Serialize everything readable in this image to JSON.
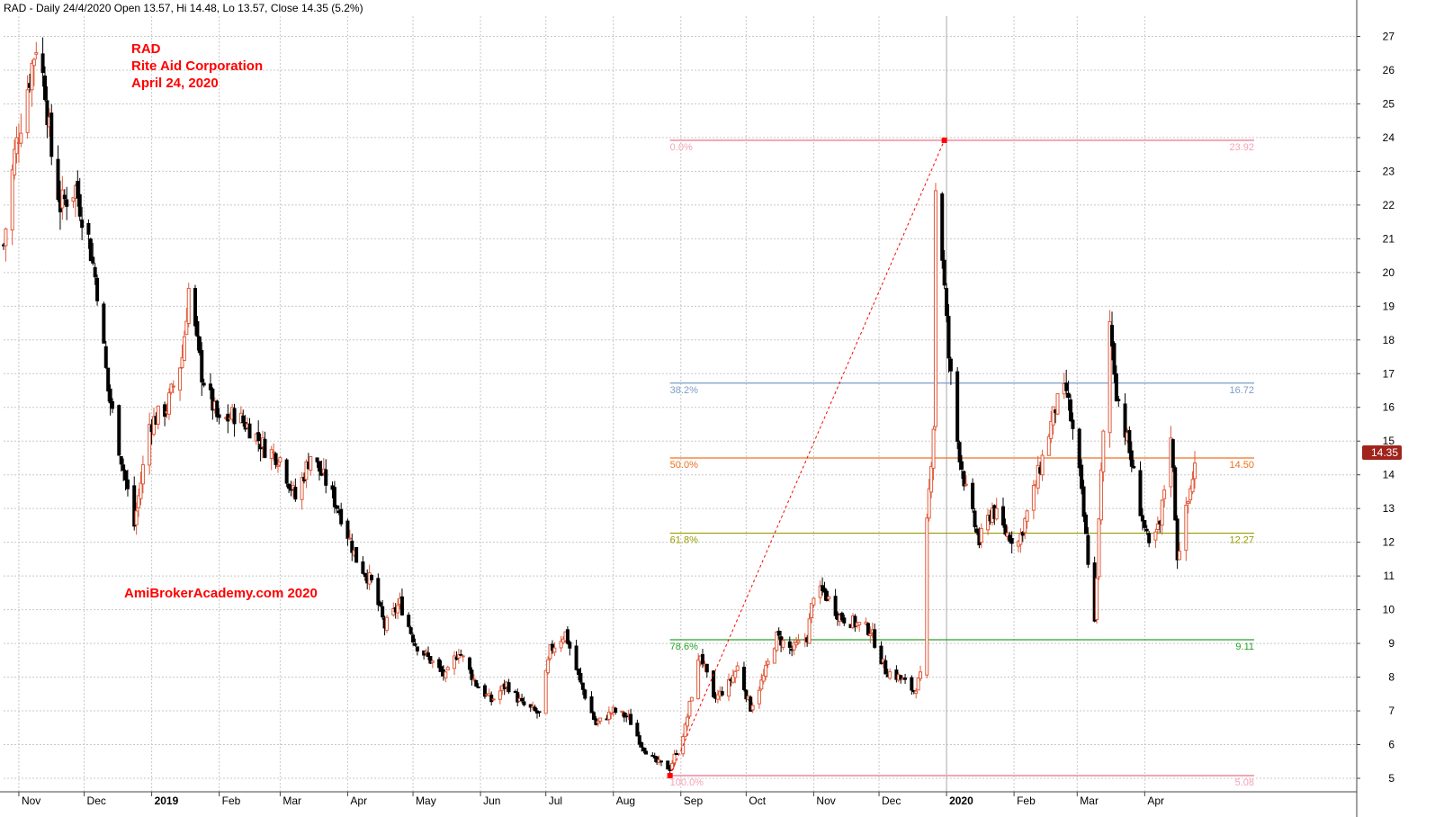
{
  "header": {
    "text": "RAD - Daily 24/4/2020 Open 13.57, Hi 14.48, Lo 13.57, Close 14.35 (5.2%)"
  },
  "annotations": {
    "ticker": "RAD",
    "company": "Rite Aid Corporation",
    "date": "April 24, 2020",
    "watermark": "AmiBrokerAcademy.com   2020"
  },
  "last_price": "14.35",
  "colors": {
    "up": "#e05a3a",
    "down": "#000000",
    "grid": "#c8c8c8",
    "fib_0": "#f5a3b5",
    "fib_382": "#7a9ec7",
    "fib_50": "#f07020",
    "fib_618": "#9a9a00",
    "fib_786": "#2aa02a",
    "fib_100": "#f5a3b5",
    "trendline": "#ff0000",
    "badge": "#a0241c"
  },
  "chart_data": {
    "type": "candlestick",
    "ylim": [
      4.6,
      27.6
    ],
    "yticks": [
      5,
      6,
      7,
      8,
      9,
      10,
      11,
      12,
      13,
      14,
      15,
      16,
      17,
      18,
      19,
      20,
      21,
      22,
      23,
      24,
      25,
      26,
      27
    ],
    "x_range": [
      "2018-10-25",
      "2020-04-24"
    ],
    "month_labels": [
      {
        "label": "Nov",
        "date": "2018-11-01"
      },
      {
        "label": "Dec",
        "date": "2018-12-01"
      },
      {
        "label": "2019",
        "date": "2019-01-01"
      },
      {
        "label": "Feb",
        "date": "2019-02-01"
      },
      {
        "label": "Mar",
        "date": "2019-03-01"
      },
      {
        "label": "Apr",
        "date": "2019-04-01"
      },
      {
        "label": "May",
        "date": "2019-05-01"
      },
      {
        "label": "Jun",
        "date": "2019-06-01"
      },
      {
        "label": "Jul",
        "date": "2019-07-01"
      },
      {
        "label": "Aug",
        "date": "2019-08-01"
      },
      {
        "label": "Sep",
        "date": "2019-09-01"
      },
      {
        "label": "Oct",
        "date": "2019-10-01"
      },
      {
        "label": "Nov",
        "date": "2019-11-01"
      },
      {
        "label": "Dec",
        "date": "2019-12-01"
      },
      {
        "label": "2020",
        "date": "2020-01-01"
      },
      {
        "label": "Feb",
        "date": "2020-02-01"
      },
      {
        "label": "Mar",
        "date": "2020-03-01"
      },
      {
        "label": "Apr",
        "date": "2020-04-01"
      }
    ],
    "close_path": [
      [
        "2018-10-25",
        20.8
      ],
      [
        "2018-10-30",
        23.5
      ],
      [
        "2018-11-05",
        25.5
      ],
      [
        "2018-11-09",
        26.8
      ],
      [
        "2018-11-13",
        25.5
      ],
      [
        "2018-11-16",
        23.5
      ],
      [
        "2018-11-20",
        22.0
      ],
      [
        "2018-11-27",
        22.5
      ],
      [
        "2018-12-03",
        21.0
      ],
      [
        "2018-12-07",
        19.5
      ],
      [
        "2018-12-12",
        16.5
      ],
      [
        "2018-12-18",
        14.5
      ],
      [
        "2018-12-24",
        12.5
      ],
      [
        "2018-12-31",
        15.5
      ],
      [
        "2019-01-08",
        16.0
      ],
      [
        "2019-01-15",
        17.5
      ],
      [
        "2019-01-18",
        19.5
      ],
      [
        "2019-01-24",
        17.0
      ],
      [
        "2019-02-01",
        15.5
      ],
      [
        "2019-02-08",
        15.8
      ],
      [
        "2019-02-15",
        15.4
      ],
      [
        "2019-02-22",
        14.8
      ],
      [
        "2019-03-01",
        14.5
      ],
      [
        "2019-03-08",
        13.3
      ],
      [
        "2019-03-15",
        14.6
      ],
      [
        "2019-03-22",
        13.8
      ],
      [
        "2019-03-29",
        12.8
      ],
      [
        "2019-04-05",
        11.5
      ],
      [
        "2019-04-12",
        10.8
      ],
      [
        "2019-04-18",
        9.5
      ],
      [
        "2019-04-25",
        10.2
      ],
      [
        "2019-05-02",
        9.0
      ],
      [
        "2019-05-09",
        8.5
      ],
      [
        "2019-05-16",
        8.0
      ],
      [
        "2019-05-22",
        8.8
      ],
      [
        "2019-05-30",
        7.8
      ],
      [
        "2019-06-06",
        7.3
      ],
      [
        "2019-06-13",
        7.8
      ],
      [
        "2019-06-20",
        7.2
      ],
      [
        "2019-06-28",
        6.9
      ],
      [
        "2019-07-03",
        8.8
      ],
      [
        "2019-07-10",
        9.3
      ],
      [
        "2019-07-17",
        7.8
      ],
      [
        "2019-07-24",
        6.6
      ],
      [
        "2019-08-01",
        7.0
      ],
      [
        "2019-08-08",
        6.8
      ],
      [
        "2019-08-14",
        6.0
      ],
      [
        "2019-08-20",
        5.5
      ],
      [
        "2019-08-27",
        5.3
      ],
      [
        "2019-09-03",
        6.5
      ],
      [
        "2019-09-06",
        7.5
      ],
      [
        "2019-09-10",
        8.7
      ],
      [
        "2019-09-16",
        7.3
      ],
      [
        "2019-09-23",
        7.8
      ],
      [
        "2019-09-27",
        8.3
      ],
      [
        "2019-10-03",
        7.1
      ],
      [
        "2019-10-09",
        8.0
      ],
      [
        "2019-10-15",
        9.2
      ],
      [
        "2019-10-22",
        8.8
      ],
      [
        "2019-10-29",
        9.2
      ],
      [
        "2019-11-01",
        10.5
      ],
      [
        "2019-11-06",
        10.5
      ],
      [
        "2019-11-13",
        9.8
      ],
      [
        "2019-11-20",
        9.6
      ],
      [
        "2019-11-27",
        9.4
      ],
      [
        "2019-12-04",
        8.2
      ],
      [
        "2019-12-10",
        8.0
      ],
      [
        "2019-12-17",
        7.6
      ],
      [
        "2019-12-20",
        8.0
      ],
      [
        "2019-12-23",
        12.5
      ],
      [
        "2019-12-26",
        15.5
      ],
      [
        "2019-12-27",
        22.5
      ],
      [
        "2019-12-30",
        20.5
      ],
      [
        "2020-01-02",
        17.5
      ],
      [
        "2020-01-06",
        15.0
      ],
      [
        "2020-01-10",
        13.5
      ],
      [
        "2020-01-16",
        12.0
      ],
      [
        "2020-01-22",
        13.0
      ],
      [
        "2020-01-28",
        12.3
      ],
      [
        "2020-02-03",
        12.0
      ],
      [
        "2020-02-10",
        13.5
      ],
      [
        "2020-02-14",
        14.5
      ],
      [
        "2020-02-20",
        16.0
      ],
      [
        "2020-02-25",
        16.5
      ],
      [
        "2020-03-02",
        14.0
      ],
      [
        "2020-03-06",
        11.5
      ],
      [
        "2020-03-09",
        9.6
      ],
      [
        "2020-03-12",
        14.0
      ],
      [
        "2020-03-16",
        18.5
      ],
      [
        "2020-03-19",
        16.5
      ],
      [
        "2020-03-24",
        15.0
      ],
      [
        "2020-03-30",
        13.0
      ],
      [
        "2020-04-03",
        11.8
      ],
      [
        "2020-04-08",
        12.5
      ],
      [
        "2020-04-13",
        15.3
      ],
      [
        "2020-04-16",
        11.6
      ],
      [
        "2020-04-21",
        13.2
      ],
      [
        "2020-04-24",
        14.35
      ]
    ],
    "fibonacci": {
      "levels": [
        {
          "pct": "0.0%",
          "value": "23.92",
          "price": 23.92
        },
        {
          "pct": "38.2%",
          "value": "16.72",
          "price": 16.72
        },
        {
          "pct": "50.0%",
          "value": "14.50",
          "price": 14.5
        },
        {
          "pct": "61.8%",
          "value": "12.27",
          "price": 12.27
        },
        {
          "pct": "78.6%",
          "value": "9.11",
          "price": 9.11
        },
        {
          "pct": "100.0%",
          "value": "5.08",
          "price": 5.08
        }
      ],
      "start_date": "2019-08-27",
      "end_date": "2019-12-31",
      "label_end_date": "2020-04-24"
    },
    "trendline": {
      "from": [
        "2019-08-27",
        5.08
      ],
      "to": [
        "2019-12-31",
        23.92
      ]
    }
  }
}
